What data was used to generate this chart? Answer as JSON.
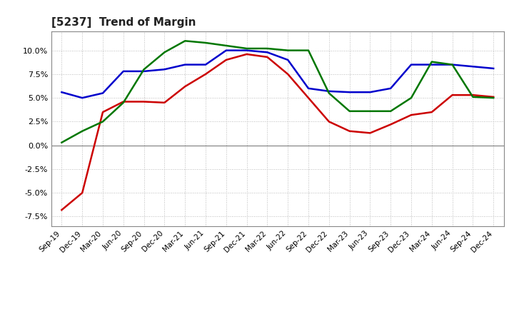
{
  "title": "[5237]  Trend of Margin",
  "x_labels": [
    "Sep-19",
    "Dec-19",
    "Mar-20",
    "Jun-20",
    "Sep-20",
    "Dec-20",
    "Mar-21",
    "Jun-21",
    "Sep-21",
    "Dec-21",
    "Mar-22",
    "Jun-22",
    "Sep-22",
    "Dec-22",
    "Mar-23",
    "Jun-23",
    "Sep-23",
    "Dec-23",
    "Mar-24",
    "Jun-24",
    "Sep-24",
    "Dec-24"
  ],
  "ordinary_income": [
    5.6,
    5.0,
    5.5,
    7.8,
    7.8,
    8.0,
    8.5,
    8.5,
    10.0,
    10.0,
    9.8,
    9.0,
    6.0,
    5.7,
    5.6,
    5.6,
    6.0,
    8.5,
    8.5,
    8.5,
    8.3,
    8.1
  ],
  "net_income": [
    -6.8,
    -5.0,
    3.5,
    4.6,
    4.6,
    4.5,
    6.2,
    7.5,
    9.0,
    9.6,
    9.3,
    7.5,
    5.0,
    2.5,
    1.5,
    1.3,
    2.2,
    3.2,
    3.5,
    5.3,
    5.3,
    5.1
  ],
  "operating_cashflow": [
    0.3,
    1.5,
    2.5,
    4.5,
    8.0,
    9.8,
    11.0,
    10.8,
    10.5,
    10.2,
    10.2,
    10.0,
    10.0,
    5.5,
    3.6,
    3.6,
    3.6,
    5.0,
    8.8,
    8.5,
    5.1,
    5.0
  ],
  "ylim": [
    -8.5,
    12.0
  ],
  "yticks": [
    -7.5,
    -5.0,
    -2.5,
    0.0,
    2.5,
    5.0,
    7.5,
    10.0
  ],
  "line_colors": {
    "ordinary_income": "#0000cc",
    "net_income": "#cc0000",
    "operating_cashflow": "#007700"
  },
  "line_width": 1.8,
  "background_color": "#ffffff",
  "grid_color": "#bbbbbb",
  "title_fontsize": 11
}
